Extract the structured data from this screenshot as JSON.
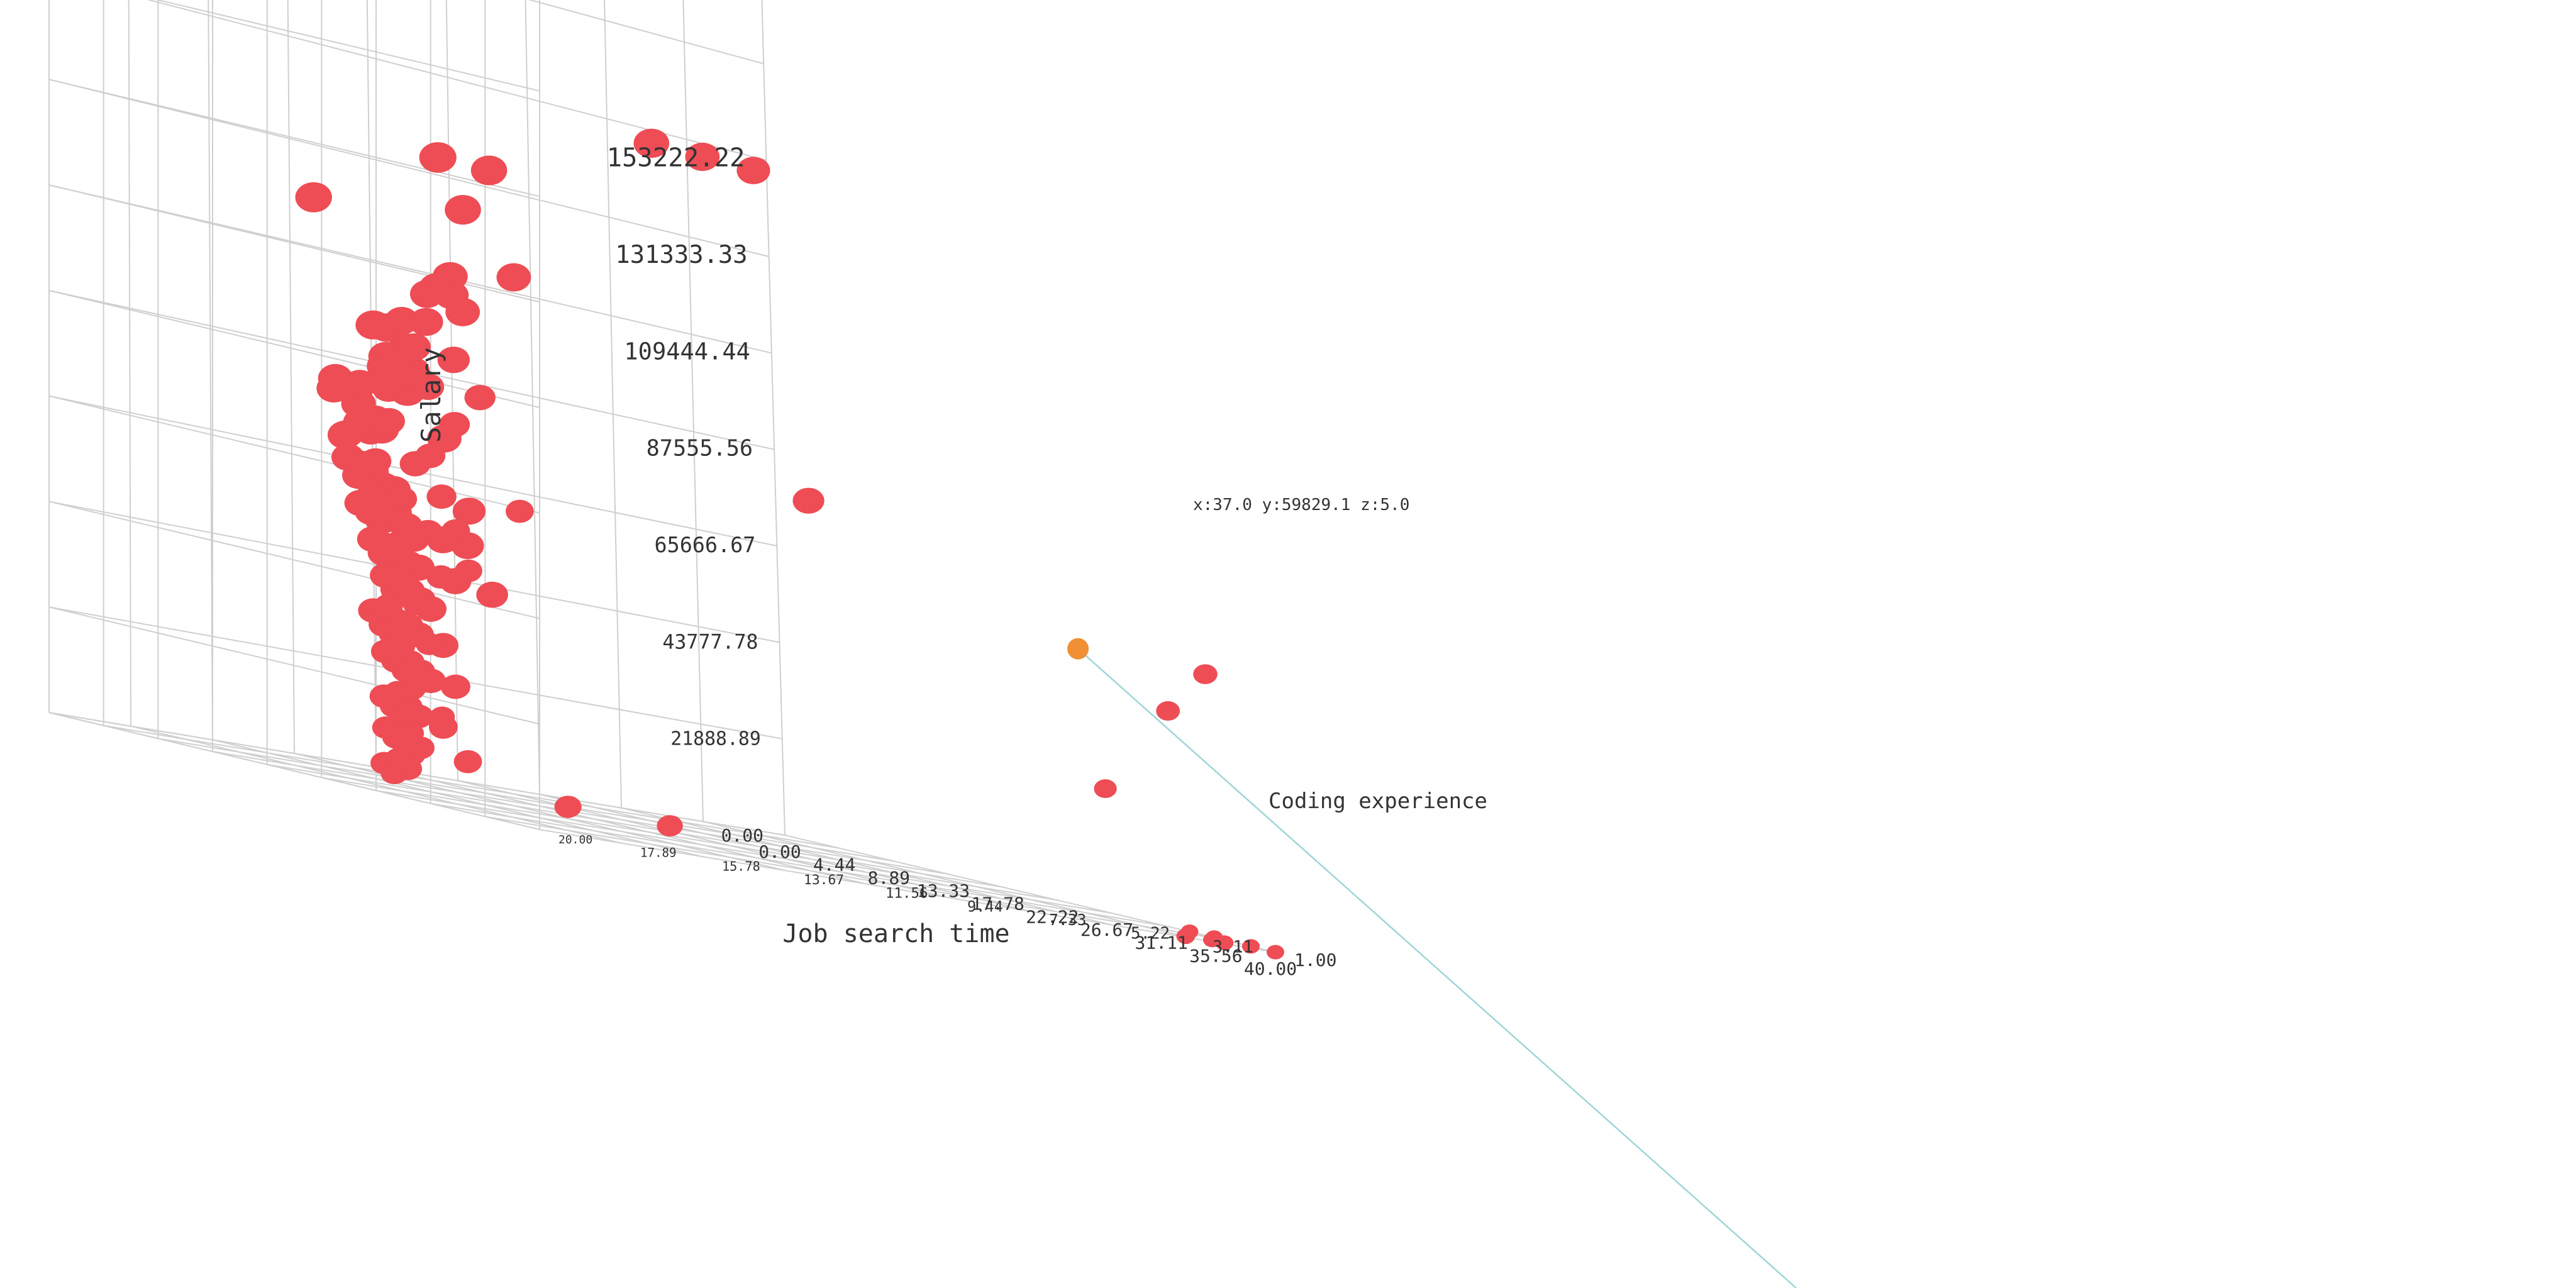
{
  "chart_data": {
    "type": "scatter",
    "dimensions": "3d",
    "x_axis": {
      "label": "Job search time",
      "range": [
        0,
        40
      ],
      "ticks": [
        "0.00",
        "4.44",
        "8.89",
        "13.33",
        "17.78",
        "22.22",
        "26.67",
        "31.11",
        "35.56",
        "40.00"
      ]
    },
    "y_axis": {
      "label": "Salary",
      "range": [
        0,
        197000
      ],
      "ticks": [
        "0.00",
        "21888.89",
        "43777.78",
        "65666.67",
        "87555.56",
        "109444.44",
        "131333.33",
        "153222.22"
      ]
    },
    "z_axis": {
      "label": "Coding experience",
      "range": [
        1,
        20
      ],
      "ticks": [
        "1.00",
        "3.11",
        "5.22",
        "7.33",
        "9.44",
        "11.56",
        "13.67",
        "15.78",
        "17.89",
        "20.00"
      ]
    },
    "grid": true,
    "series": [
      {
        "color": "#ee4d55",
        "points": [
          [
            2,
            150000,
            2
          ],
          [
            4,
            150000,
            4
          ],
          [
            6,
            150000,
            6
          ],
          [
            5,
            135000,
            10
          ],
          [
            7,
            135000,
            12
          ],
          [
            3,
            120000,
            14
          ],
          [
            9,
            125000,
            12
          ],
          [
            10,
            113000,
            11
          ],
          [
            6,
            105000,
            12
          ],
          [
            8,
            106000,
            12
          ],
          [
            11,
            110000,
            13
          ],
          [
            12,
            103000,
            13
          ],
          [
            13,
            107000,
            14
          ],
          [
            7,
            98000,
            13
          ],
          [
            9,
            99000,
            13
          ],
          [
            12,
            96000,
            15
          ],
          [
            14,
            96000,
            16
          ],
          [
            5,
            92000,
            11
          ],
          [
            8,
            93000,
            13
          ],
          [
            11,
            88000,
            14
          ],
          [
            13,
            89000,
            15
          ],
          [
            15,
            90000,
            16
          ],
          [
            16,
            91000,
            16
          ],
          [
            18,
            88000,
            17
          ],
          [
            20,
            93000,
            17
          ],
          [
            4,
            85000,
            10
          ],
          [
            6,
            85000,
            12
          ],
          [
            9,
            83000,
            14
          ],
          [
            12,
            82000,
            16
          ],
          [
            14,
            83000,
            17
          ],
          [
            16,
            83000,
            17
          ],
          [
            17,
            81000,
            18
          ],
          [
            19,
            79000,
            18
          ],
          [
            23,
            84000,
            18
          ],
          [
            5,
            78000,
            11
          ],
          [
            9,
            76000,
            14
          ],
          [
            11,
            76000,
            15
          ],
          [
            14,
            76000,
            16
          ],
          [
            16,
            75000,
            17
          ],
          [
            18,
            72000,
            18
          ],
          [
            20,
            74000,
            18
          ],
          [
            21,
            72000,
            19
          ],
          [
            24,
            75000,
            19
          ],
          [
            26,
            76000,
            18
          ],
          [
            3,
            70000,
            11
          ],
          [
            8,
            68000,
            13
          ],
          [
            11,
            67000,
            15
          ],
          [
            13,
            66000,
            16
          ],
          [
            15,
            67000,
            17
          ],
          [
            17,
            65000,
            17
          ],
          [
            19,
            64000,
            18
          ],
          [
            21,
            63000,
            18
          ],
          [
            23,
            64000,
            19
          ],
          [
            25,
            63000,
            19
          ],
          [
            28,
            62000,
            18
          ],
          [
            4,
            62000,
            9
          ],
          [
            7,
            62000,
            12
          ],
          [
            10,
            60000,
            14
          ],
          [
            12,
            59000,
            15
          ],
          [
            14,
            60000,
            16
          ],
          [
            16,
            58000,
            17
          ],
          [
            18,
            57000,
            17
          ],
          [
            20,
            57000,
            18
          ],
          [
            22,
            58000,
            18
          ],
          [
            24,
            56000,
            19
          ],
          [
            26,
            56000,
            19
          ],
          [
            29,
            55000,
            19
          ],
          [
            31,
            55000,
            19
          ],
          [
            5,
            55000,
            11
          ],
          [
            9,
            54000,
            13
          ],
          [
            11,
            52000,
            14
          ],
          [
            13,
            51000,
            15
          ],
          [
            15,
            50000,
            16
          ],
          [
            17,
            51000,
            17
          ],
          [
            19,
            50000,
            17
          ],
          [
            21,
            49000,
            18
          ],
          [
            23,
            48000,
            18
          ],
          [
            25,
            49000,
            19
          ],
          [
            27,
            48000,
            19
          ],
          [
            30,
            47000,
            19
          ],
          [
            33,
            46000,
            19
          ],
          [
            6,
            47000,
            11
          ],
          [
            10,
            45000,
            13
          ],
          [
            13,
            44000,
            15
          ],
          [
            16,
            43000,
            16
          ],
          [
            18,
            44000,
            17
          ],
          [
            20,
            42000,
            17
          ],
          [
            22,
            42000,
            18
          ],
          [
            24,
            41000,
            18
          ],
          [
            26,
            42000,
            19
          ],
          [
            28,
            40000,
            19
          ],
          [
            8,
            38000,
            13
          ],
          [
            12,
            37000,
            15
          ],
          [
            15,
            36000,
            16
          ],
          [
            17,
            36000,
            17
          ],
          [
            19,
            35000,
            17
          ],
          [
            21,
            34000,
            18
          ],
          [
            23,
            35000,
            18
          ],
          [
            25,
            33000,
            19
          ],
          [
            27,
            34000,
            19
          ],
          [
            29,
            33000,
            19
          ],
          [
            9,
            30000,
            13
          ],
          [
            13,
            29000,
            15
          ],
          [
            16,
            28000,
            16
          ],
          [
            18,
            28000,
            17
          ],
          [
            20,
            27000,
            17
          ],
          [
            22,
            27000,
            18
          ],
          [
            24,
            26000,
            18
          ],
          [
            26,
            26000,
            19
          ],
          [
            28,
            25000,
            19
          ],
          [
            30,
            25000,
            19
          ],
          [
            11,
            22000,
            14
          ],
          [
            14,
            21000,
            15
          ],
          [
            17,
            21000,
            16
          ],
          [
            19,
            20000,
            17
          ],
          [
            21,
            19000,
            18
          ],
          [
            23,
            18000,
            18
          ],
          [
            25,
            18000,
            19
          ],
          [
            27,
            17000,
            19
          ],
          [
            29,
            16000,
            19
          ],
          [
            10,
            15000,
            13
          ],
          [
            13,
            14000,
            15
          ],
          [
            16,
            13000,
            16
          ],
          [
            18,
            12000,
            17
          ],
          [
            20,
            12000,
            17
          ],
          [
            22,
            11000,
            18
          ],
          [
            24,
            10000,
            18
          ],
          [
            26,
            10000,
            19
          ],
          [
            31,
            10000,
            19
          ],
          [
            14,
            8000,
            15
          ],
          [
            17,
            7000,
            16
          ],
          [
            19,
            6000,
            17
          ],
          [
            21,
            5000,
            18
          ],
          [
            23,
            5000,
            18
          ],
          [
            25,
            4000,
            19
          ],
          [
            36,
            5000,
            18
          ],
          [
            38,
            5000,
            16
          ],
          [
            39,
            0,
            3
          ],
          [
            39,
            0,
            2
          ],
          [
            39,
            0,
            3
          ],
          [
            38,
            0,
            2
          ],
          [
            38,
            0,
            1
          ],
          [
            33,
            0,
            1
          ],
          [
            35,
            0,
            1
          ],
          [
            40,
            0,
            1
          ],
          [
            37,
            80000,
            12
          ],
          [
            39,
            30000,
            5
          ],
          [
            38,
            50000,
            3
          ],
          [
            38,
            60000,
            2
          ]
        ]
      }
    ],
    "highlight": {
      "point": [
        37.0,
        59829.1,
        5.0
      ],
      "label": "x:37.0 y:59829.1 z:5.0",
      "color": "#f08f34",
      "guide_color": "#9fd6d6"
    }
  }
}
